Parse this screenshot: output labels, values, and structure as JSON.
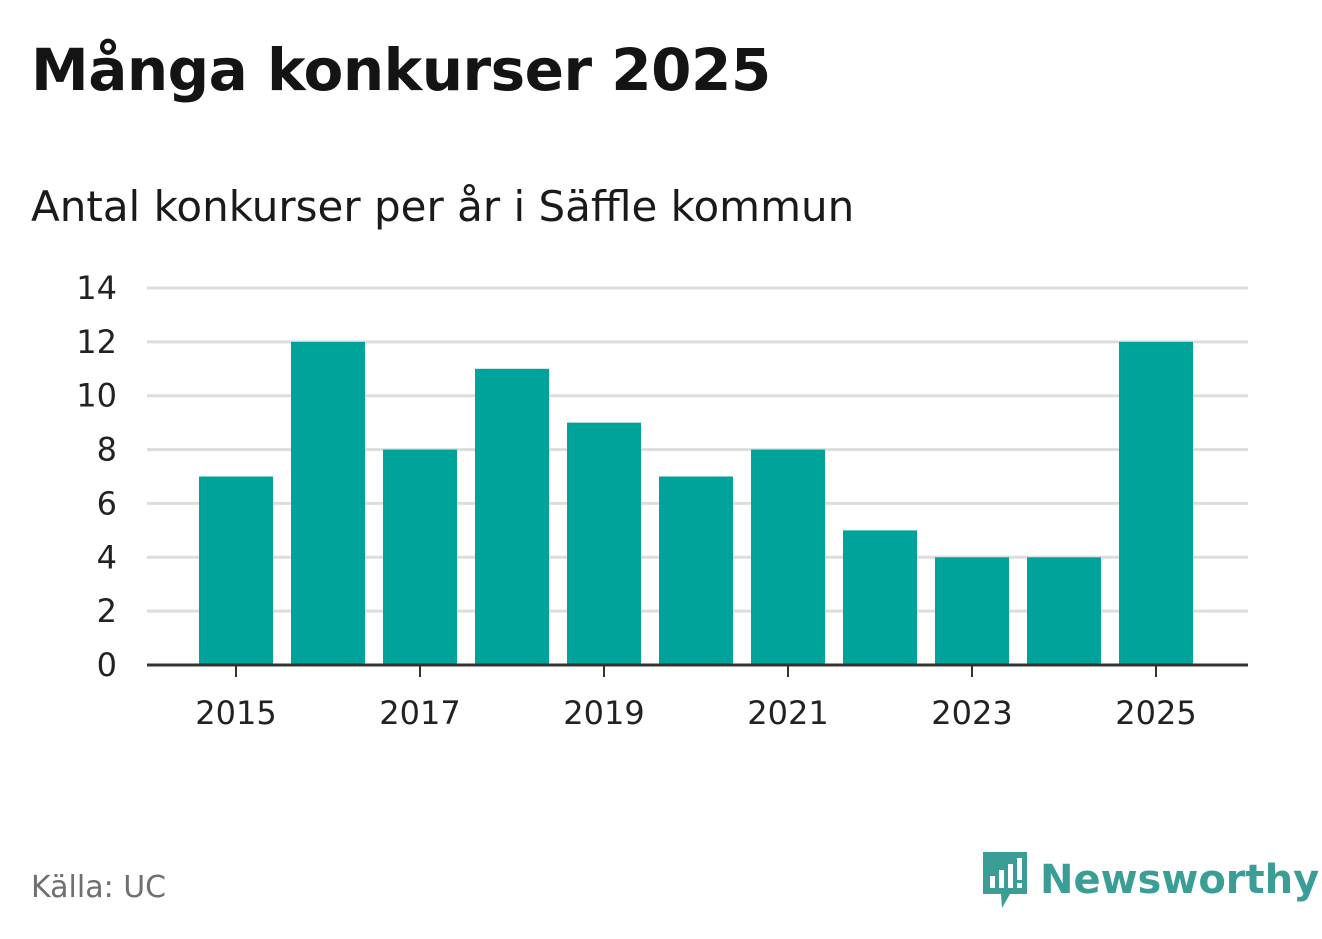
{
  "colors": {
    "bar": "#00a39a",
    "grid": "#dddddd",
    "axis": "#333333",
    "brand": "#3a9e97",
    "source": "#6f6f6f"
  },
  "header": {
    "title": "Många konkurser 2025",
    "subtitle": "Antal konkurser per år i Säffle kommun"
  },
  "footer": {
    "source": "Källa: UC",
    "brand": "Newsworthy",
    "brand_icon": "newsworthy-logo-icon"
  },
  "chart_data": {
    "type": "bar",
    "title": "Många konkurser 2025",
    "subtitle": "Antal konkurser per år i Säffle kommun",
    "xlabel": "",
    "ylabel": "",
    "categories": [
      "2015",
      "2016",
      "2017",
      "2018",
      "2019",
      "2020",
      "2021",
      "2022",
      "2023",
      "2024",
      "2025"
    ],
    "values": [
      7,
      12,
      8,
      11,
      9,
      7,
      8,
      5,
      4,
      4,
      12
    ],
    "x_tick_labels": [
      "2015",
      "2017",
      "2019",
      "2021",
      "2023",
      "2025"
    ],
    "y_ticks": [
      0,
      2,
      4,
      6,
      8,
      10,
      12,
      14
    ],
    "ylim": [
      0,
      14
    ],
    "grid": true,
    "legend": "none"
  }
}
